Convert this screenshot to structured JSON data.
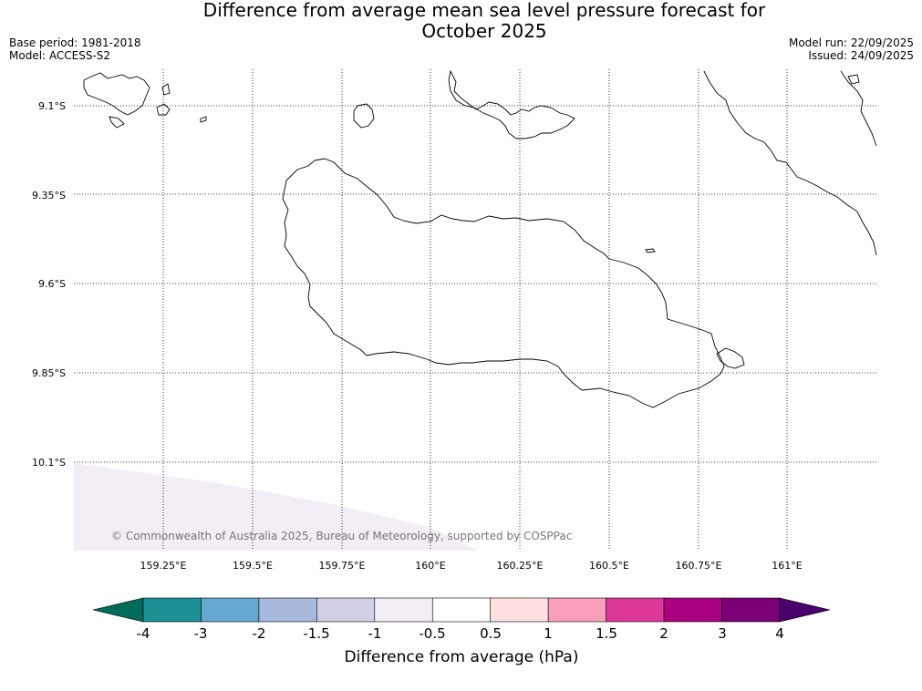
{
  "title_line1": "Difference from average mean sea level pressure forecast for",
  "title_line2": "October 2025",
  "meta": {
    "base_period": "Base period: 1981-2018",
    "model": "Model: ACCESS-S2",
    "model_run": "Model run: 22/09/2025",
    "issued": "Issued: 24/09/2025"
  },
  "map": {
    "lat_labels": [
      "9.1°S",
      "9.35°S",
      "9.6°S",
      "9.85°S",
      "10.1°S"
    ],
    "lon_labels": [
      "159.25°E",
      "159.5°E",
      "159.75°E",
      "160°E",
      "160.25°E",
      "160.5°E",
      "160.75°E",
      "161°E"
    ],
    "copyright": "© Commonwealth of Australia 2025, Bureau of Meteorology, supported by COSPPac",
    "shading_color": "#f3edf5",
    "coast_color": "#000000"
  },
  "colorbar": {
    "label": "Difference from average (hPa)",
    "ticks": [
      "-4",
      "-3",
      "-2",
      "-1.5",
      "-1",
      "-0.5",
      "0.5",
      "1",
      "1.5",
      "2",
      "3",
      "4"
    ],
    "colors": [
      "#1a8f94",
      "#65a8d1",
      "#a7b9dc",
      "#cfd0e5",
      "#f3edf5",
      "#ffffff",
      "#fde0df",
      "#f8a0bb",
      "#dc3698",
      "#ab0281",
      "#7a0078"
    ],
    "under_color": "#016c59",
    "over_color": "#49006a"
  }
}
